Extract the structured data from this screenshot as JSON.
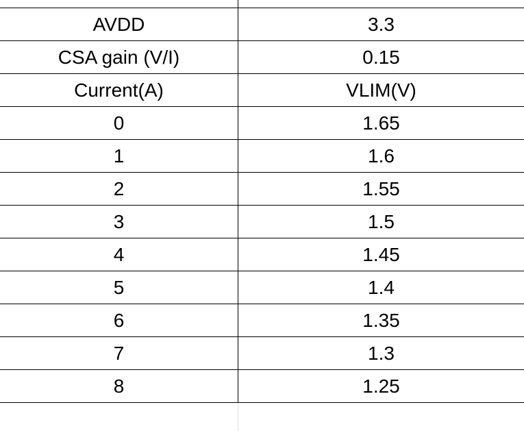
{
  "table": {
    "rows": [
      [
        "AVDD",
        "3.3"
      ],
      [
        "CSA gain (V/I)",
        "0.15"
      ],
      [
        "Current(A)",
        "VLIM(V)"
      ],
      [
        "0",
        "1.65"
      ],
      [
        "1",
        "1.6"
      ],
      [
        "2",
        "1.55"
      ],
      [
        "3",
        "1.5"
      ],
      [
        "4",
        "1.45"
      ],
      [
        "5",
        "1.4"
      ],
      [
        "6",
        "1.35"
      ],
      [
        "7",
        "1.3"
      ],
      [
        "8",
        "1.25"
      ]
    ]
  }
}
